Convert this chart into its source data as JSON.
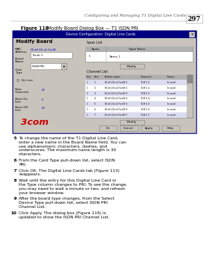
{
  "bg_color": "#ffffff",
  "header_text": "Configuring and Managing T1 Digital Line Cards",
  "page_num": "297",
  "figure_label_bold": "Figure 118",
  "figure_label_rest": "   Modify Board Dialog Box — T1 ISDN PRI",
  "dialog_header_text": "Device Configuration  Digital Line Cards",
  "steps": [
    {
      "num": "5",
      "text": "To change the name of the T1 Digital Line Card, enter a new name in the Board Name field. You can use alphanumeric characters, dashes, and underscores. The maximum name length is 30 characters."
    },
    {
      "num": "6",
      "text": "From the Card Type pull-down list, select ISDN PRI."
    },
    {
      "num": "7",
      "text": "Click OK. The Digital Line Cards tab (Figure 113) reappears."
    },
    {
      "num": "8",
      "text": "Wait until the entry for this Digital Line Card in the Type column changes to PRI. To see the change, you may need to wait a minute or two, and refresh your browser window."
    },
    {
      "num": "9",
      "text": "After the board type changes, from the Select Device Type pull-down list, select ISDN PRI Channel List."
    },
    {
      "num": "10",
      "text": "Click Apply. The dialog box (Figure 119) is updated to show the ISDN PRI Channel List."
    }
  ],
  "ch_rows": [
    [
      "1",
      "1",
      "00:a0:24:c4:7a:48:1",
      "T1:B:1-1",
      "In used"
    ],
    [
      "1",
      "2",
      "00:a0:24:c4:7a:48:2",
      "T1:B:1-2",
      "In used"
    ],
    [
      "1",
      "3",
      "00:a0:24:c4:7a:48:3",
      "T1:B:1-3",
      "In used"
    ],
    [
      "1",
      "4",
      "00:a0:24:c4:7a:48:4",
      "T1:B:1-4",
      "In used"
    ],
    [
      "1",
      "5",
      "00:a0:24:c4:7a:48:5",
      "T1:B:1-5",
      "In used"
    ],
    [
      "1",
      "6",
      "00:a0:24:c4:7a:48:6",
      "T1:B:1-6",
      "In used"
    ],
    [
      "1",
      "7",
      "00:a0:24:c4:7a:48:7",
      "T1:B:1-7",
      "In used"
    ]
  ],
  "bottom_buttons": [
    "Ok",
    "Cancel",
    "Apply",
    "Help"
  ]
}
